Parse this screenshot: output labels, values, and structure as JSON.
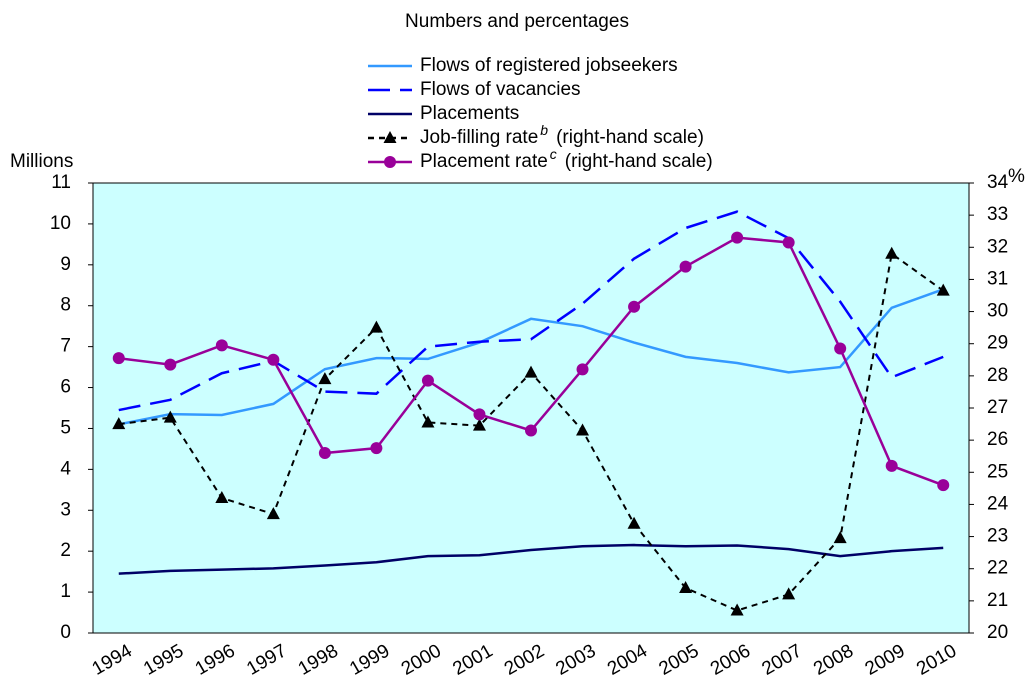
{
  "chart_data": {
    "type": "line",
    "title": "Numbers and percentages",
    "ylabel": "Millions",
    "y2label": "%",
    "categories": [
      "1994",
      "1995",
      "1996",
      "1997",
      "1998",
      "1999",
      "2000",
      "2001",
      "2002",
      "2003",
      "2004",
      "2005",
      "2006",
      "2007",
      "2008",
      "2009",
      "2010"
    ],
    "ylim": [
      0,
      11
    ],
    "yticks": [
      0,
      1,
      2,
      3,
      4,
      5,
      6,
      7,
      8,
      9,
      10,
      11
    ],
    "y2lim": [
      20,
      34
    ],
    "y2ticks": [
      20,
      21,
      22,
      23,
      24,
      25,
      26,
      27,
      28,
      29,
      30,
      31,
      32,
      33,
      34
    ],
    "grid": false,
    "series": [
      {
        "name": "Flows of registered jobseekers",
        "color": "#3399ff",
        "dash": "solid",
        "values": [
          5.1,
          5.35,
          5.33,
          5.6,
          6.45,
          6.72,
          6.7,
          7.1,
          7.68,
          7.5,
          7.1,
          6.75,
          6.6,
          6.37,
          6.5,
          7.95,
          8.4
        ]
      },
      {
        "name": "Flows of vacancies",
        "color": "#0000ff",
        "dash": "dashed",
        "values": [
          5.45,
          5.7,
          6.35,
          6.65,
          5.9,
          5.85,
          7.0,
          7.12,
          7.18,
          8.05,
          9.15,
          9.9,
          10.3,
          9.65,
          8.1,
          6.25,
          6.75
        ]
      },
      {
        "name": "Placements",
        "color": "#000066",
        "dash": "solid",
        "values": [
          1.45,
          1.52,
          1.55,
          1.58,
          1.65,
          1.73,
          1.88,
          1.9,
          2.03,
          2.12,
          2.15,
          2.12,
          2.14,
          2.05,
          1.88,
          2.0,
          2.08
        ]
      },
      {
        "name": "Job-filling rate",
        "name_note": "b",
        "name_suffix": "(right-hand scale)",
        "color": "#000000",
        "dash": "dotted",
        "marker": "triangle",
        "axis": "y2",
        "values": [
          26.5,
          26.7,
          24.2,
          23.7,
          27.9,
          29.5,
          26.55,
          26.45,
          28.1,
          26.3,
          23.4,
          21.4,
          20.7,
          21.2,
          22.95,
          31.8,
          30.65
        ]
      },
      {
        "name": "Placement rate",
        "name_note": "c",
        "name_suffix": "(right-hand scale)",
        "color": "#990099",
        "dash": "solid",
        "marker": "circle",
        "axis": "y2",
        "values": [
          28.55,
          28.35,
          28.95,
          28.5,
          25.6,
          25.75,
          27.85,
          26.8,
          26.3,
          28.2,
          30.15,
          31.4,
          32.3,
          32.15,
          28.85,
          25.2,
          24.6
        ]
      }
    ]
  }
}
